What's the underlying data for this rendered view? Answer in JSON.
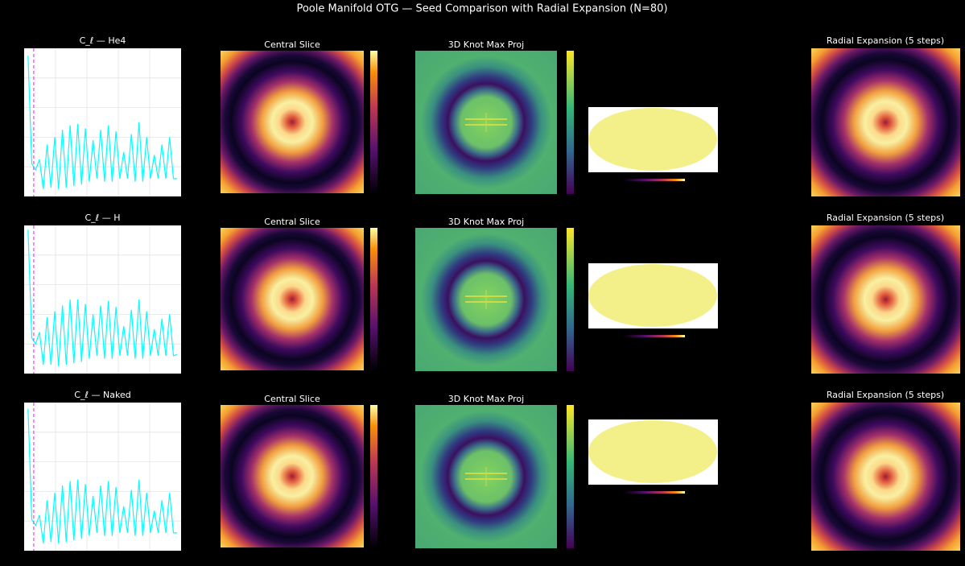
{
  "figure_title": "Poole Manifold OTG — Seed Comparison with Radial Expansion (N=80)",
  "chart_data": [
    {
      "type": "line",
      "title": "C_ℓ — He4",
      "color": "#00ffff",
      "vline": 3,
      "vline_color": "#ff44ff",
      "grid": true,
      "xlim": [
        -2,
        80
      ],
      "ylim": [
        0,
        1
      ],
      "x": [
        0,
        2,
        4,
        6,
        8,
        10,
        12,
        14,
        16,
        18,
        20,
        22,
        24,
        26,
        28,
        30,
        32,
        34,
        36,
        38,
        40,
        42,
        44,
        46,
        48,
        50,
        52,
        54,
        56,
        58,
        60,
        62,
        64,
        66,
        68,
        70,
        72,
        74,
        76,
        78
      ],
      "values": [
        0.95,
        0.22,
        0.18,
        0.25,
        0.05,
        0.35,
        0.06,
        0.4,
        0.05,
        0.45,
        0.06,
        0.48,
        0.07,
        0.49,
        0.08,
        0.46,
        0.1,
        0.38,
        0.12,
        0.45,
        0.1,
        0.48,
        0.1,
        0.44,
        0.12,
        0.3,
        0.12,
        0.42,
        0.1,
        0.5,
        0.1,
        0.4,
        0.12,
        0.28,
        0.12,
        0.35,
        0.12,
        0.4,
        0.12,
        0.12
      ]
    },
    {
      "type": "line",
      "title": "C_ℓ — H",
      "color": "#00ffff",
      "vline": 3,
      "vline_color": "#ff44ff",
      "grid": true,
      "xlim": [
        -2,
        80
      ],
      "ylim": [
        0,
        1
      ],
      "x": [
        0,
        2,
        4,
        6,
        8,
        10,
        12,
        14,
        16,
        18,
        20,
        22,
        24,
        26,
        28,
        30,
        32,
        34,
        36,
        38,
        40,
        42,
        44,
        46,
        48,
        50,
        52,
        54,
        56,
        58,
        60,
        62,
        64,
        66,
        68,
        70,
        72,
        74,
        76,
        78
      ],
      "values": [
        0.97,
        0.24,
        0.2,
        0.28,
        0.06,
        0.38,
        0.06,
        0.42,
        0.05,
        0.46,
        0.06,
        0.5,
        0.07,
        0.5,
        0.08,
        0.47,
        0.1,
        0.4,
        0.12,
        0.46,
        0.1,
        0.49,
        0.1,
        0.45,
        0.12,
        0.32,
        0.12,
        0.43,
        0.1,
        0.5,
        0.1,
        0.42,
        0.12,
        0.3,
        0.12,
        0.37,
        0.12,
        0.4,
        0.12,
        0.13
      ]
    },
    {
      "type": "line",
      "title": "C_ℓ — Naked",
      "color": "#00ffff",
      "vline": 3,
      "vline_color": "#ff44ff",
      "grid": true,
      "xlim": [
        -2,
        80
      ],
      "ylim": [
        0,
        1
      ],
      "x": [
        0,
        2,
        4,
        6,
        8,
        10,
        12,
        14,
        16,
        18,
        20,
        22,
        24,
        26,
        28,
        30,
        32,
        34,
        36,
        38,
        40,
        42,
        44,
        46,
        48,
        50,
        52,
        54,
        56,
        58,
        60,
        62,
        64,
        66,
        68,
        70,
        72,
        74,
        76,
        78
      ],
      "values": [
        0.96,
        0.21,
        0.17,
        0.24,
        0.05,
        0.34,
        0.06,
        0.39,
        0.05,
        0.44,
        0.06,
        0.47,
        0.07,
        0.48,
        0.08,
        0.45,
        0.1,
        0.37,
        0.12,
        0.44,
        0.1,
        0.47,
        0.1,
        0.43,
        0.12,
        0.3,
        0.12,
        0.41,
        0.1,
        0.48,
        0.1,
        0.39,
        0.12,
        0.27,
        0.12,
        0.34,
        0.12,
        0.39,
        0.12,
        0.12
      ]
    }
  ],
  "panels": [
    {
      "slice_title": "Central Slice",
      "knot_title": "3D Knot Max Proj",
      "radial_title": "Radial Expansion (5 steps)"
    },
    {
      "slice_title": "Central Slice",
      "knot_title": "3D Knot Max Proj",
      "radial_title": "Radial Expansion (5 steps)"
    },
    {
      "slice_title": "Central Slice",
      "knot_title": "3D Knot Max Proj",
      "radial_title": "Radial Expansion (5 steps)"
    }
  ]
}
